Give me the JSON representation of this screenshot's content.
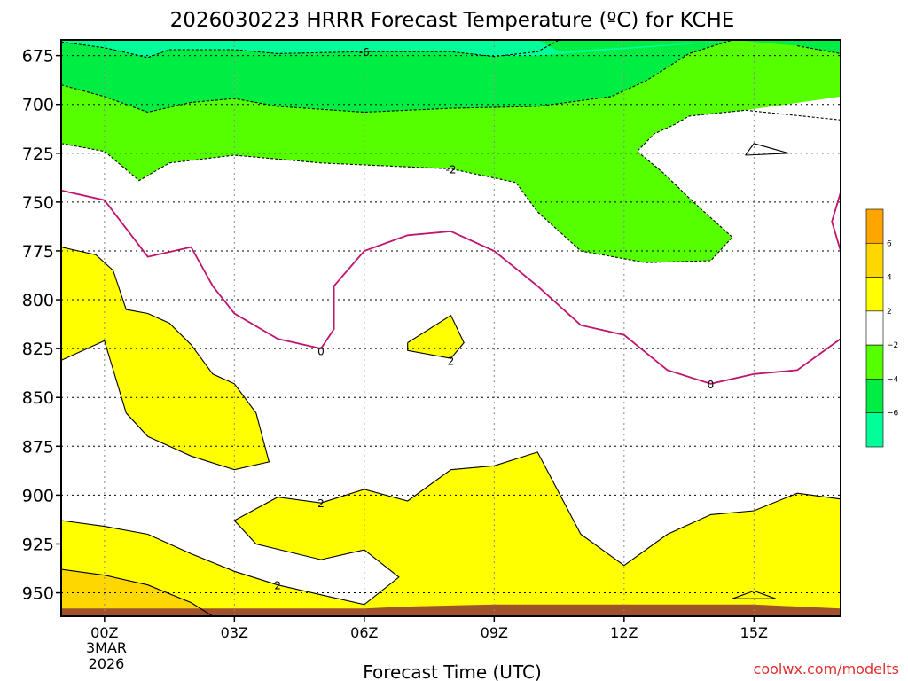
{
  "chart_data": {
    "type": "area",
    "title": "2026030223 HRRR Forecast Temperature (ºC) for KCHE",
    "xlabel": "Forecast Time (UTC)",
    "ylabel": "",
    "x_ticks": [
      "00Z",
      "03Z",
      "06Z",
      "09Z",
      "12Z",
      "15Z"
    ],
    "x_tick_hours": [
      0,
      3,
      6,
      9,
      12,
      15
    ],
    "date_label": [
      "3MAR",
      "2026"
    ],
    "xlim_hours": [
      -1,
      17
    ],
    "y_ticks": [
      675,
      700,
      725,
      750,
      775,
      800,
      825,
      850,
      875,
      900,
      925,
      950
    ],
    "ylim_hpa": [
      962,
      667
    ],
    "grid": true,
    "colorbar": {
      "placement": "right",
      "bins": [
        {
          "range": [
            6,
            8
          ],
          "color": "#ffa500"
        },
        {
          "range": [
            4,
            6
          ],
          "color": "#ffd700"
        },
        {
          "range": [
            2,
            4
          ],
          "color": "#ffff00"
        },
        {
          "range": [
            -2,
            2
          ],
          "color": "#ffffff"
        },
        {
          "range": [
            -4,
            -2
          ],
          "color": "#55ff00"
        },
        {
          "range": [
            -6,
            -4
          ],
          "color": "#00ee44"
        },
        {
          "range": [
            -8,
            -6
          ],
          "color": "#00ff99"
        }
      ],
      "tick_labels": [
        "6",
        "4",
        "2",
        "−2",
        "−4",
        "−6"
      ]
    },
    "fill_regions": [
      {
        "name": "-2 to -4",
        "color": "#55ff00",
        "points": [
          [
            -1,
            667
          ],
          [
            17,
            667
          ],
          [
            17,
            696
          ],
          [
            14.8,
            703
          ],
          [
            13.5,
            706
          ],
          [
            13.2,
            710
          ],
          [
            12.7,
            715
          ],
          [
            12.3,
            724
          ],
          [
            12.9,
            735
          ],
          [
            13.6,
            750
          ],
          [
            14.5,
            768
          ],
          [
            14.0,
            780
          ],
          [
            12.5,
            781
          ],
          [
            11.0,
            775
          ],
          [
            10.0,
            755
          ],
          [
            9.5,
            740
          ],
          [
            8,
            733
          ],
          [
            5,
            730
          ],
          [
            3,
            726
          ],
          [
            1.5,
            730
          ],
          [
            0.8,
            739
          ],
          [
            0,
            724
          ],
          [
            -1,
            720
          ]
        ]
      },
      {
        "name": "-4 to -6",
        "color": "#00ee44",
        "points": [
          [
            -1,
            667
          ],
          [
            17,
            667
          ],
          [
            17,
            674
          ],
          [
            16,
            670
          ],
          [
            14.5,
            667
          ],
          [
            13.5,
            674
          ],
          [
            12.5,
            688
          ],
          [
            11.7,
            696
          ],
          [
            10,
            701
          ],
          [
            8,
            702
          ],
          [
            6,
            704
          ],
          [
            4,
            701
          ],
          [
            3,
            697
          ],
          [
            2,
            699
          ],
          [
            1,
            704
          ],
          [
            0,
            696
          ],
          [
            -1,
            690
          ]
        ]
      },
      {
        "name": "-6 to -8",
        "color": "#00ff99",
        "points": [
          [
            -1,
            667
          ],
          [
            14.8,
            667
          ],
          [
            10,
            675
          ],
          [
            9,
            675.5
          ],
          [
            8,
            673
          ],
          [
            6,
            673
          ],
          [
            4,
            674
          ],
          [
            3,
            672
          ],
          [
            1.5,
            672
          ],
          [
            1,
            676
          ],
          [
            0,
            671
          ],
          [
            -1,
            668
          ]
        ]
      },
      {
        "name": "-4 to -6 (upper)",
        "color": "#00ee44",
        "points": [
          [
            10,
            667
          ],
          [
            14.8,
            667
          ],
          [
            10.5,
            673
          ]
        ]
      },
      {
        "name": "2 to 4 (low-left)",
        "color": "#ffff00",
        "points": [
          [
            -1,
            773
          ],
          [
            -0.2,
            777
          ],
          [
            0.2,
            785
          ],
          [
            0.5,
            805
          ],
          [
            1,
            807
          ],
          [
            1.5,
            812
          ],
          [
            2,
            823
          ],
          [
            2.5,
            838
          ],
          [
            3,
            843
          ],
          [
            3.5,
            858
          ],
          [
            3.8,
            883
          ],
          [
            3,
            887
          ],
          [
            2,
            880
          ],
          [
            1,
            870
          ],
          [
            0.5,
            858
          ],
          [
            0,
            821
          ],
          [
            -1,
            831
          ]
        ]
      },
      {
        "name": "2 to 4 (mid)",
        "color": "#ffff00",
        "points": [
          [
            7.0,
            822
          ],
          [
            8,
            808
          ],
          [
            8.3,
            822
          ],
          [
            8,
            830
          ],
          [
            7,
            826
          ]
        ]
      },
      {
        "name": "2 to 4 (low)",
        "color": "#ffff00",
        "points": [
          [
            -1,
            962
          ],
          [
            17,
            962
          ],
          [
            17,
            902
          ],
          [
            16,
            899
          ],
          [
            15,
            908
          ],
          [
            14,
            910
          ],
          [
            13,
            920
          ],
          [
            12,
            936
          ],
          [
            11,
            920
          ],
          [
            10,
            878
          ],
          [
            9,
            885
          ],
          [
            8,
            887
          ],
          [
            7,
            903
          ],
          [
            6,
            897
          ],
          [
            5,
            904
          ],
          [
            4,
            901
          ],
          [
            3,
            913
          ],
          [
            3.5,
            925
          ],
          [
            5,
            933
          ],
          [
            6,
            928
          ],
          [
            6.8,
            942
          ],
          [
            6,
            956
          ],
          [
            5,
            951
          ],
          [
            4,
            946
          ],
          [
            3,
            939
          ],
          [
            2,
            930
          ],
          [
            1,
            920
          ],
          [
            0,
            916
          ],
          [
            -1,
            913
          ]
        ]
      },
      {
        "name": "4 to 6",
        "color": "#ffd700",
        "points": [
          [
            -1,
            962
          ],
          [
            2.5,
            962
          ],
          [
            2,
            955
          ],
          [
            1,
            946
          ],
          [
            0,
            941
          ],
          [
            -1,
            938
          ]
        ]
      },
      {
        "name": "ground",
        "color": "#a0522d",
        "points": [
          [
            -1,
            962
          ],
          [
            17,
            962
          ],
          [
            17,
            958
          ],
          [
            15,
            956
          ],
          [
            12,
            956
          ],
          [
            9,
            956
          ],
          [
            7,
            957
          ],
          [
            6,
            958
          ],
          [
            4,
            958
          ],
          [
            2,
            958
          ],
          [
            0,
            958
          ],
          [
            -1,
            958
          ]
        ]
      }
    ],
    "contours": [
      {
        "level": "-6",
        "style": "dashed",
        "points": [
          [
            -1,
            668
          ],
          [
            0,
            671
          ],
          [
            1,
            676
          ],
          [
            1.5,
            672
          ],
          [
            3,
            672
          ],
          [
            4,
            674
          ],
          [
            6,
            673
          ],
          [
            8,
            673
          ],
          [
            9,
            675.5
          ],
          [
            10,
            673
          ],
          [
            10.5,
            667
          ]
        ]
      },
      {
        "level": "-2",
        "style": "dashed",
        "points": [
          [
            -1,
            720
          ],
          [
            0,
            724
          ],
          [
            0.8,
            739
          ],
          [
            1.5,
            730
          ],
          [
            3,
            726
          ],
          [
            5,
            730
          ],
          [
            8,
            733
          ],
          [
            9.5,
            740
          ],
          [
            10,
            755
          ],
          [
            11,
            775
          ],
          [
            12.5,
            781
          ],
          [
            14,
            780
          ],
          [
            14.5,
            768
          ],
          [
            13.6,
            750
          ],
          [
            12.9,
            735
          ],
          [
            12.3,
            724
          ],
          [
            12.7,
            715
          ],
          [
            13.2,
            710
          ],
          [
            13.5,
            706
          ],
          [
            14.8,
            703
          ],
          [
            17,
            708
          ]
        ]
      },
      {
        "level": "-4",
        "style": "dashed",
        "points": [
          [
            -1,
            690
          ],
          [
            0,
            696
          ],
          [
            1,
            704
          ],
          [
            2,
            699
          ],
          [
            3,
            697
          ],
          [
            4,
            701
          ],
          [
            6,
            704
          ],
          [
            8,
            702
          ],
          [
            10,
            701
          ],
          [
            11.7,
            696
          ],
          [
            12.5,
            688
          ],
          [
            13.5,
            674
          ],
          [
            14.5,
            667
          ]
        ]
      },
      {
        "level": "-4",
        "style": "dashed",
        "points": [
          [
            16,
            670
          ],
          [
            17,
            674
          ]
        ]
      },
      {
        "level": "0",
        "style": "solid",
        "points": [
          [
            -1,
            744
          ],
          [
            0,
            749
          ],
          [
            1,
            778
          ],
          [
            2,
            773
          ],
          [
            2.5,
            793
          ],
          [
            3,
            807
          ],
          [
            4,
            820
          ],
          [
            5,
            825
          ],
          [
            5.3,
            815
          ],
          [
            5.3,
            793
          ],
          [
            6,
            775
          ],
          [
            7,
            767
          ],
          [
            8,
            765
          ],
          [
            9,
            775
          ],
          [
            10,
            793
          ],
          [
            11,
            813
          ],
          [
            12,
            818
          ],
          [
            13,
            836
          ],
          [
            14,
            843
          ],
          [
            15,
            838
          ],
          [
            16,
            836
          ],
          [
            17,
            820
          ]
        ]
      },
      {
        "level": "0",
        "style": "solid",
        "points": [
          [
            17,
            745
          ],
          [
            16.8,
            760
          ],
          [
            17,
            775
          ]
        ]
      },
      {
        "level": "2",
        "style": "solid",
        "points": [
          [
            -1,
            831
          ],
          [
            0,
            821
          ],
          [
            0.5,
            858
          ],
          [
            1,
            870
          ],
          [
            2,
            880
          ],
          [
            3,
            887
          ],
          [
            3.8,
            883
          ],
          [
            3.5,
            858
          ],
          [
            3,
            843
          ],
          [
            2.5,
            838
          ],
          [
            2,
            823
          ],
          [
            1.5,
            812
          ],
          [
            1,
            807
          ],
          [
            0.5,
            805
          ],
          [
            0.2,
            785
          ],
          [
            -0.2,
            777
          ],
          [
            -1,
            773
          ]
        ]
      },
      {
        "level": "2",
        "style": "solid",
        "points": [
          [
            7.0,
            822
          ],
          [
            8,
            808
          ],
          [
            8.3,
            822
          ],
          [
            8,
            830
          ],
          [
            7,
            826
          ],
          [
            7.0,
            822
          ]
        ]
      },
      {
        "level": "2",
        "style": "solid",
        "points": [
          [
            -1,
            913
          ],
          [
            0,
            916
          ],
          [
            1,
            920
          ],
          [
            2,
            930
          ],
          [
            3,
            939
          ],
          [
            4,
            946
          ],
          [
            5,
            951
          ],
          [
            6,
            956
          ],
          [
            6.8,
            942
          ],
          [
            6,
            928
          ],
          [
            5,
            933
          ],
          [
            3.5,
            925
          ],
          [
            3,
            913
          ],
          [
            4,
            901
          ],
          [
            5,
            904
          ],
          [
            6,
            897
          ],
          [
            7,
            903
          ],
          [
            8,
            887
          ],
          [
            9,
            885
          ],
          [
            10,
            878
          ],
          [
            11,
            920
          ],
          [
            12,
            936
          ],
          [
            13,
            920
          ],
          [
            14,
            910
          ],
          [
            15,
            908
          ],
          [
            16,
            899
          ],
          [
            17,
            902
          ]
        ]
      },
      {
        "level": "2",
        "style": "solid",
        "points": [
          [
            14.5,
            953
          ],
          [
            15,
            949
          ],
          [
            15.5,
            953
          ],
          [
            14.5,
            953
          ]
        ]
      },
      {
        "level": "4",
        "style": "solid",
        "points": [
          [
            -1,
            938
          ],
          [
            0,
            941
          ],
          [
            1,
            946
          ],
          [
            2,
            955
          ],
          [
            2.5,
            962
          ]
        ]
      },
      {
        "level": "-2 (closed)",
        "style": "solid",
        "points": [
          [
            14.8,
            726
          ],
          [
            15,
            720
          ],
          [
            15.8,
            725
          ],
          [
            14.8,
            726
          ]
        ]
      }
    ],
    "contour_labels": [
      {
        "text": "-6",
        "hour": 6,
        "hpa": 673
      },
      {
        "text": "-2",
        "hour": 8,
        "hpa": 733
      },
      {
        "text": "0",
        "hour": 5,
        "hpa": 826
      },
      {
        "text": "2",
        "hour": 8,
        "hpa": 831
      },
      {
        "text": "0",
        "hour": 14,
        "hpa": 843
      },
      {
        "text": "2",
        "hour": 5,
        "hpa": 904
      },
      {
        "text": "2",
        "hour": 4,
        "hpa": 946
      }
    ]
  },
  "watermark": "coolwx.com/modelts"
}
